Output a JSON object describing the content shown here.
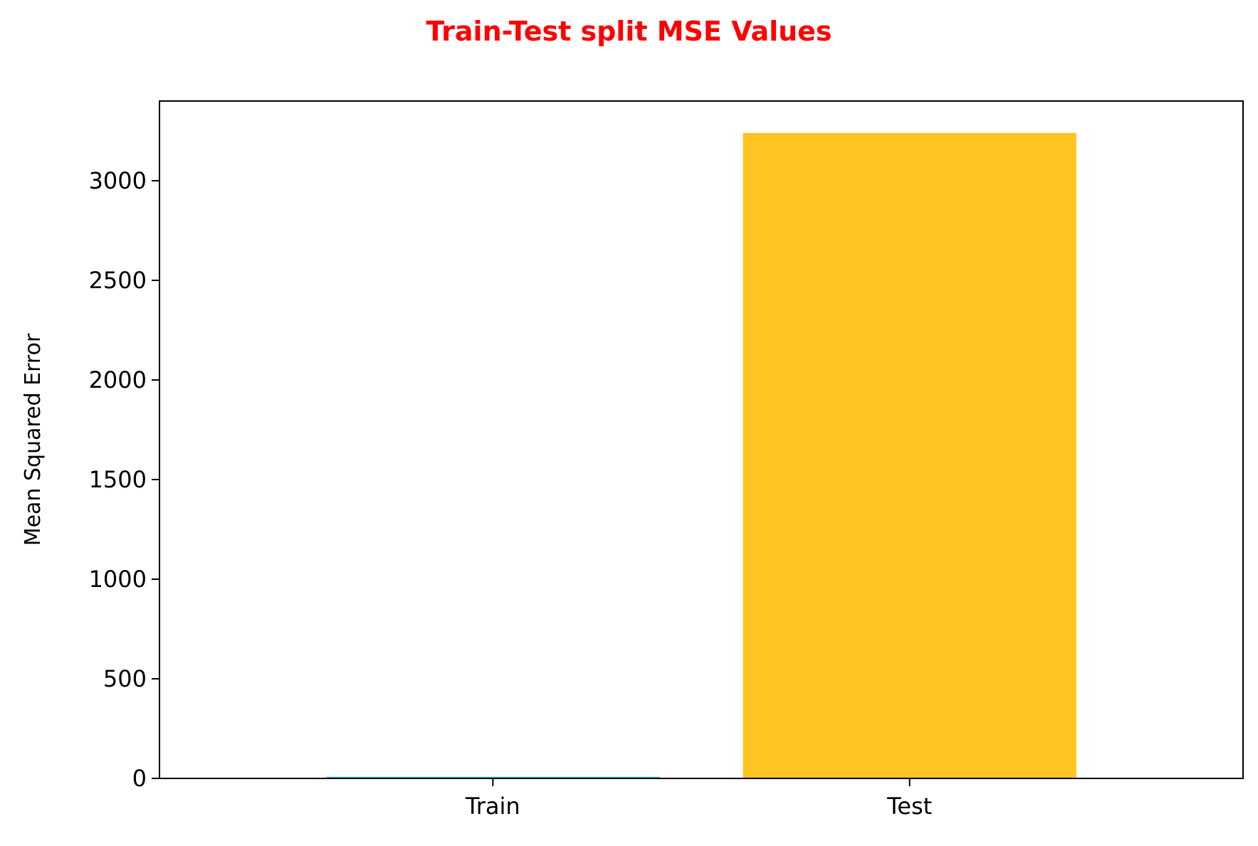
{
  "chart_data": {
    "type": "bar",
    "title": "Train-Test split MSE Values",
    "xlabel": "",
    "ylabel": "Mean Squared Error",
    "categories": [
      "Train",
      "Test"
    ],
    "values": [
      8,
      3240
    ],
    "colors": [
      "#29b6f6",
      "#ffc41f"
    ],
    "title_color": "#ff0000",
    "ylim": [
      0,
      3400
    ],
    "yticks": [
      0,
      500,
      1000,
      1500,
      2000,
      2500,
      3000
    ],
    "grid": false,
    "legend": "none"
  }
}
